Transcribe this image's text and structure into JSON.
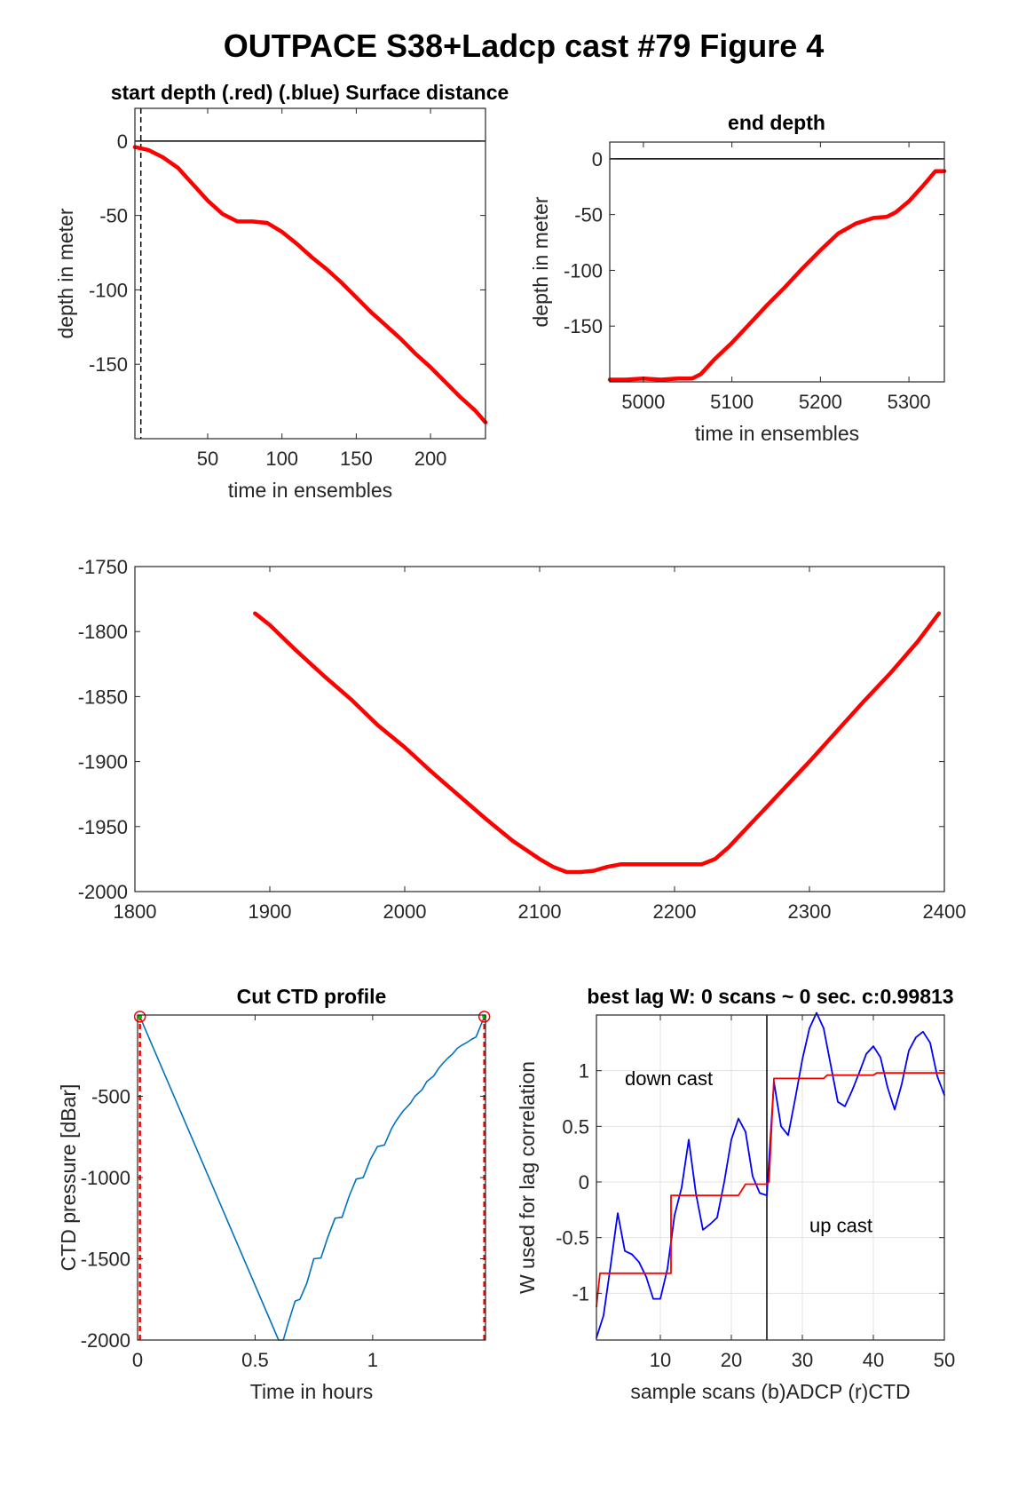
{
  "figure_title": "OUTPACE S38+Ladcp cast #79   Figure 4",
  "chart_data": [
    {
      "id": "start",
      "type": "line",
      "title": "start depth (.red) (.blue) Surface distance",
      "xlabel": "time in ensembles",
      "ylabel": "depth in meter",
      "xlim": [
        1,
        237
      ],
      "ylim": [
        -200,
        22
      ],
      "xticks": [
        50,
        100,
        150,
        200
      ],
      "yticks": [
        0,
        -50,
        -100,
        -150
      ],
      "hline": 0,
      "vline": 5,
      "grid": false,
      "series": [
        {
          "color": "#ff0000",
          "x": [
            1,
            10,
            20,
            30,
            40,
            50,
            60,
            70,
            80,
            90,
            100,
            110,
            120,
            130,
            140,
            150,
            160,
            170,
            180,
            190,
            200,
            210,
            220,
            230,
            237
          ],
          "y": [
            -4,
            -6,
            -11,
            -18,
            -29,
            -40,
            -49,
            -54,
            -54,
            -55,
            -61,
            -69,
            -78,
            -86,
            -95,
            -105,
            -115,
            -124,
            -133,
            -143,
            -152,
            -162,
            -172,
            -181,
            -189
          ]
        }
      ]
    },
    {
      "id": "end",
      "type": "line",
      "title": "end depth",
      "xlabel": "time in ensembles",
      "ylabel": "depth in meter",
      "xlim": [
        4962,
        5340
      ],
      "ylim": [
        -200,
        15
      ],
      "xticks": [
        5000,
        5100,
        5200,
        5300
      ],
      "yticks": [
        0,
        -50,
        -100,
        -150
      ],
      "hline": 0,
      "grid": false,
      "series": [
        {
          "color": "#ff0000",
          "x": [
            4962,
            4980,
            5000,
            5020,
            5040,
            5055,
            5065,
            5080,
            5100,
            5120,
            5140,
            5160,
            5180,
            5200,
            5220,
            5240,
            5260,
            5275,
            5285,
            5300,
            5315,
            5330,
            5340
          ],
          "y": [
            -198,
            -198,
            -197,
            -198,
            -197,
            -197,
            -193,
            -180,
            -165,
            -148,
            -131,
            -115,
            -98,
            -82,
            -67,
            -58,
            -53,
            -52,
            -48,
            -38,
            -25,
            -11,
            -11
          ]
        }
      ]
    },
    {
      "id": "middle",
      "type": "line",
      "title": "",
      "xlabel": "",
      "ylabel": "",
      "xlim": [
        1800,
        2400
      ],
      "ylim": [
        -2000,
        -1750
      ],
      "xticks": [
        1800,
        1900,
        2000,
        2100,
        2200,
        2300,
        2400
      ],
      "yticks": [
        -1750,
        -1800,
        -1850,
        -1900,
        -1950,
        -2000
      ],
      "grid": false,
      "series": [
        {
          "color": "#ff0000",
          "x": [
            1889,
            1900,
            1920,
            1940,
            1960,
            1980,
            2000,
            2020,
            2040,
            2060,
            2080,
            2100,
            2110,
            2120,
            2130,
            2140,
            2150,
            2160,
            2170,
            2180,
            2200,
            2220,
            2230,
            2240,
            2250,
            2260,
            2280,
            2300,
            2320,
            2340,
            2360,
            2380,
            2396
          ],
          "y": [
            -1786,
            -1795,
            -1815,
            -1834,
            -1852,
            -1872,
            -1889,
            -1908,
            -1926,
            -1944,
            -1961,
            -1975,
            -1981,
            -1985,
            -1985,
            -1984,
            -1981,
            -1979,
            -1979,
            -1979,
            -1979,
            -1979,
            -1975,
            -1966,
            -1955,
            -1944,
            -1922,
            -1900,
            -1877,
            -1854,
            -1832,
            -1808,
            -1786
          ]
        }
      ]
    },
    {
      "id": "ctd",
      "type": "line",
      "title": "Cut CTD profile",
      "xlabel": "Time in hours",
      "ylabel": "CTD pressure [dBar]",
      "xlim": [
        0,
        1.48
      ],
      "ylim": [
        -2000,
        0
      ],
      "xticks": [
        0,
        0.5,
        1
      ],
      "xtick_labels": [
        "0",
        "0.5",
        "1"
      ],
      "yticks": [
        -500,
        -1000,
        -1500,
        -2000
      ],
      "grid": false,
      "cut_lines": [
        0.01,
        1.475
      ],
      "markers": [
        {
          "x": 0.01,
          "y": -10
        },
        {
          "x": 1.475,
          "y": -10
        }
      ],
      "series": [
        {
          "color": "#0072bd",
          "x": [
            0.01,
            0.6,
            0.62,
            0.64,
            0.67,
            0.69,
            0.72,
            0.75,
            0.78,
            0.81,
            0.84,
            0.87,
            0.9,
            0.93,
            0.96,
            0.99,
            1.02,
            1.05,
            1.08,
            1.1,
            1.13,
            1.16,
            1.18,
            1.21,
            1.23,
            1.26,
            1.28,
            1.3,
            1.32,
            1.34,
            1.36,
            1.38,
            1.4,
            1.42,
            1.44,
            1.475
          ],
          "y": [
            -10,
            -2000,
            -2000,
            -1900,
            -1760,
            -1750,
            -1650,
            -1500,
            -1495,
            -1365,
            -1250,
            -1245,
            -1115,
            -1010,
            -1000,
            -890,
            -810,
            -800,
            -700,
            -650,
            -590,
            -545,
            -500,
            -460,
            -410,
            -375,
            -330,
            -295,
            -265,
            -240,
            -205,
            -185,
            -170,
            -150,
            -135,
            -10
          ]
        }
      ]
    },
    {
      "id": "lag",
      "type": "line",
      "title": "best lag W: 0 scans ~ 0 sec.  c:0.99813",
      "xlabel": "sample scans (b)ADCP (r)CTD",
      "ylabel": "W used for lag correlation",
      "xlim": [
        1,
        50
      ],
      "ylim": [
        -1.42,
        1.5
      ],
      "xticks": [
        10,
        20,
        30,
        40,
        50
      ],
      "yticks": [
        1,
        0.5,
        0,
        -0.5,
        -1
      ],
      "ytick_labels": [
        "1",
        "0.5",
        "0",
        "-0.5",
        "-1"
      ],
      "grid": true,
      "vline": 25,
      "annotations": [
        {
          "text": "down cast",
          "x": 5,
          "y": 0.87
        },
        {
          "text": "up cast",
          "x": 31,
          "y": -0.45
        }
      ],
      "series": [
        {
          "color": "#0000ff",
          "x": [
            1,
            2,
            3,
            4,
            5,
            6,
            7,
            8,
            9,
            10,
            11,
            12,
            13,
            14,
            15,
            16,
            17,
            18,
            19,
            20,
            21,
            22,
            23,
            24,
            25,
            26,
            27,
            28,
            29,
            30,
            31,
            32,
            33,
            34,
            35,
            36,
            37,
            38,
            39,
            40,
            41,
            42,
            43,
            44,
            45,
            46,
            47,
            48,
            49,
            50
          ],
          "y": [
            -1.4,
            -1.2,
            -0.75,
            -0.28,
            -0.62,
            -0.65,
            -0.72,
            -0.85,
            -1.05,
            -1.05,
            -0.78,
            -0.3,
            -0.05,
            0.38,
            -0.1,
            -0.43,
            -0.38,
            -0.32,
            0.0,
            0.38,
            0.57,
            0.45,
            0.05,
            -0.1,
            -0.12,
            0.9,
            0.5,
            0.42,
            0.75,
            1.1,
            1.38,
            1.52,
            1.38,
            1.05,
            0.72,
            0.68,
            0.82,
            0.98,
            1.15,
            1.22,
            1.12,
            0.85,
            0.65,
            0.88,
            1.18,
            1.3,
            1.35,
            1.25,
            0.95,
            0.78
          ]
        },
        {
          "color": "#ff0000",
          "x": [
            1,
            1.5,
            2,
            11.5,
            11.5,
            21,
            22,
            25,
            25.3,
            26,
            33,
            33.5,
            40,
            40.5,
            50
          ],
          "y": [
            -1.12,
            -0.82,
            -0.82,
            -0.82,
            -0.12,
            -0.12,
            -0.02,
            -0.02,
            0.0,
            0.93,
            0.93,
            0.96,
            0.96,
            0.98,
            0.98
          ]
        }
      ]
    }
  ]
}
